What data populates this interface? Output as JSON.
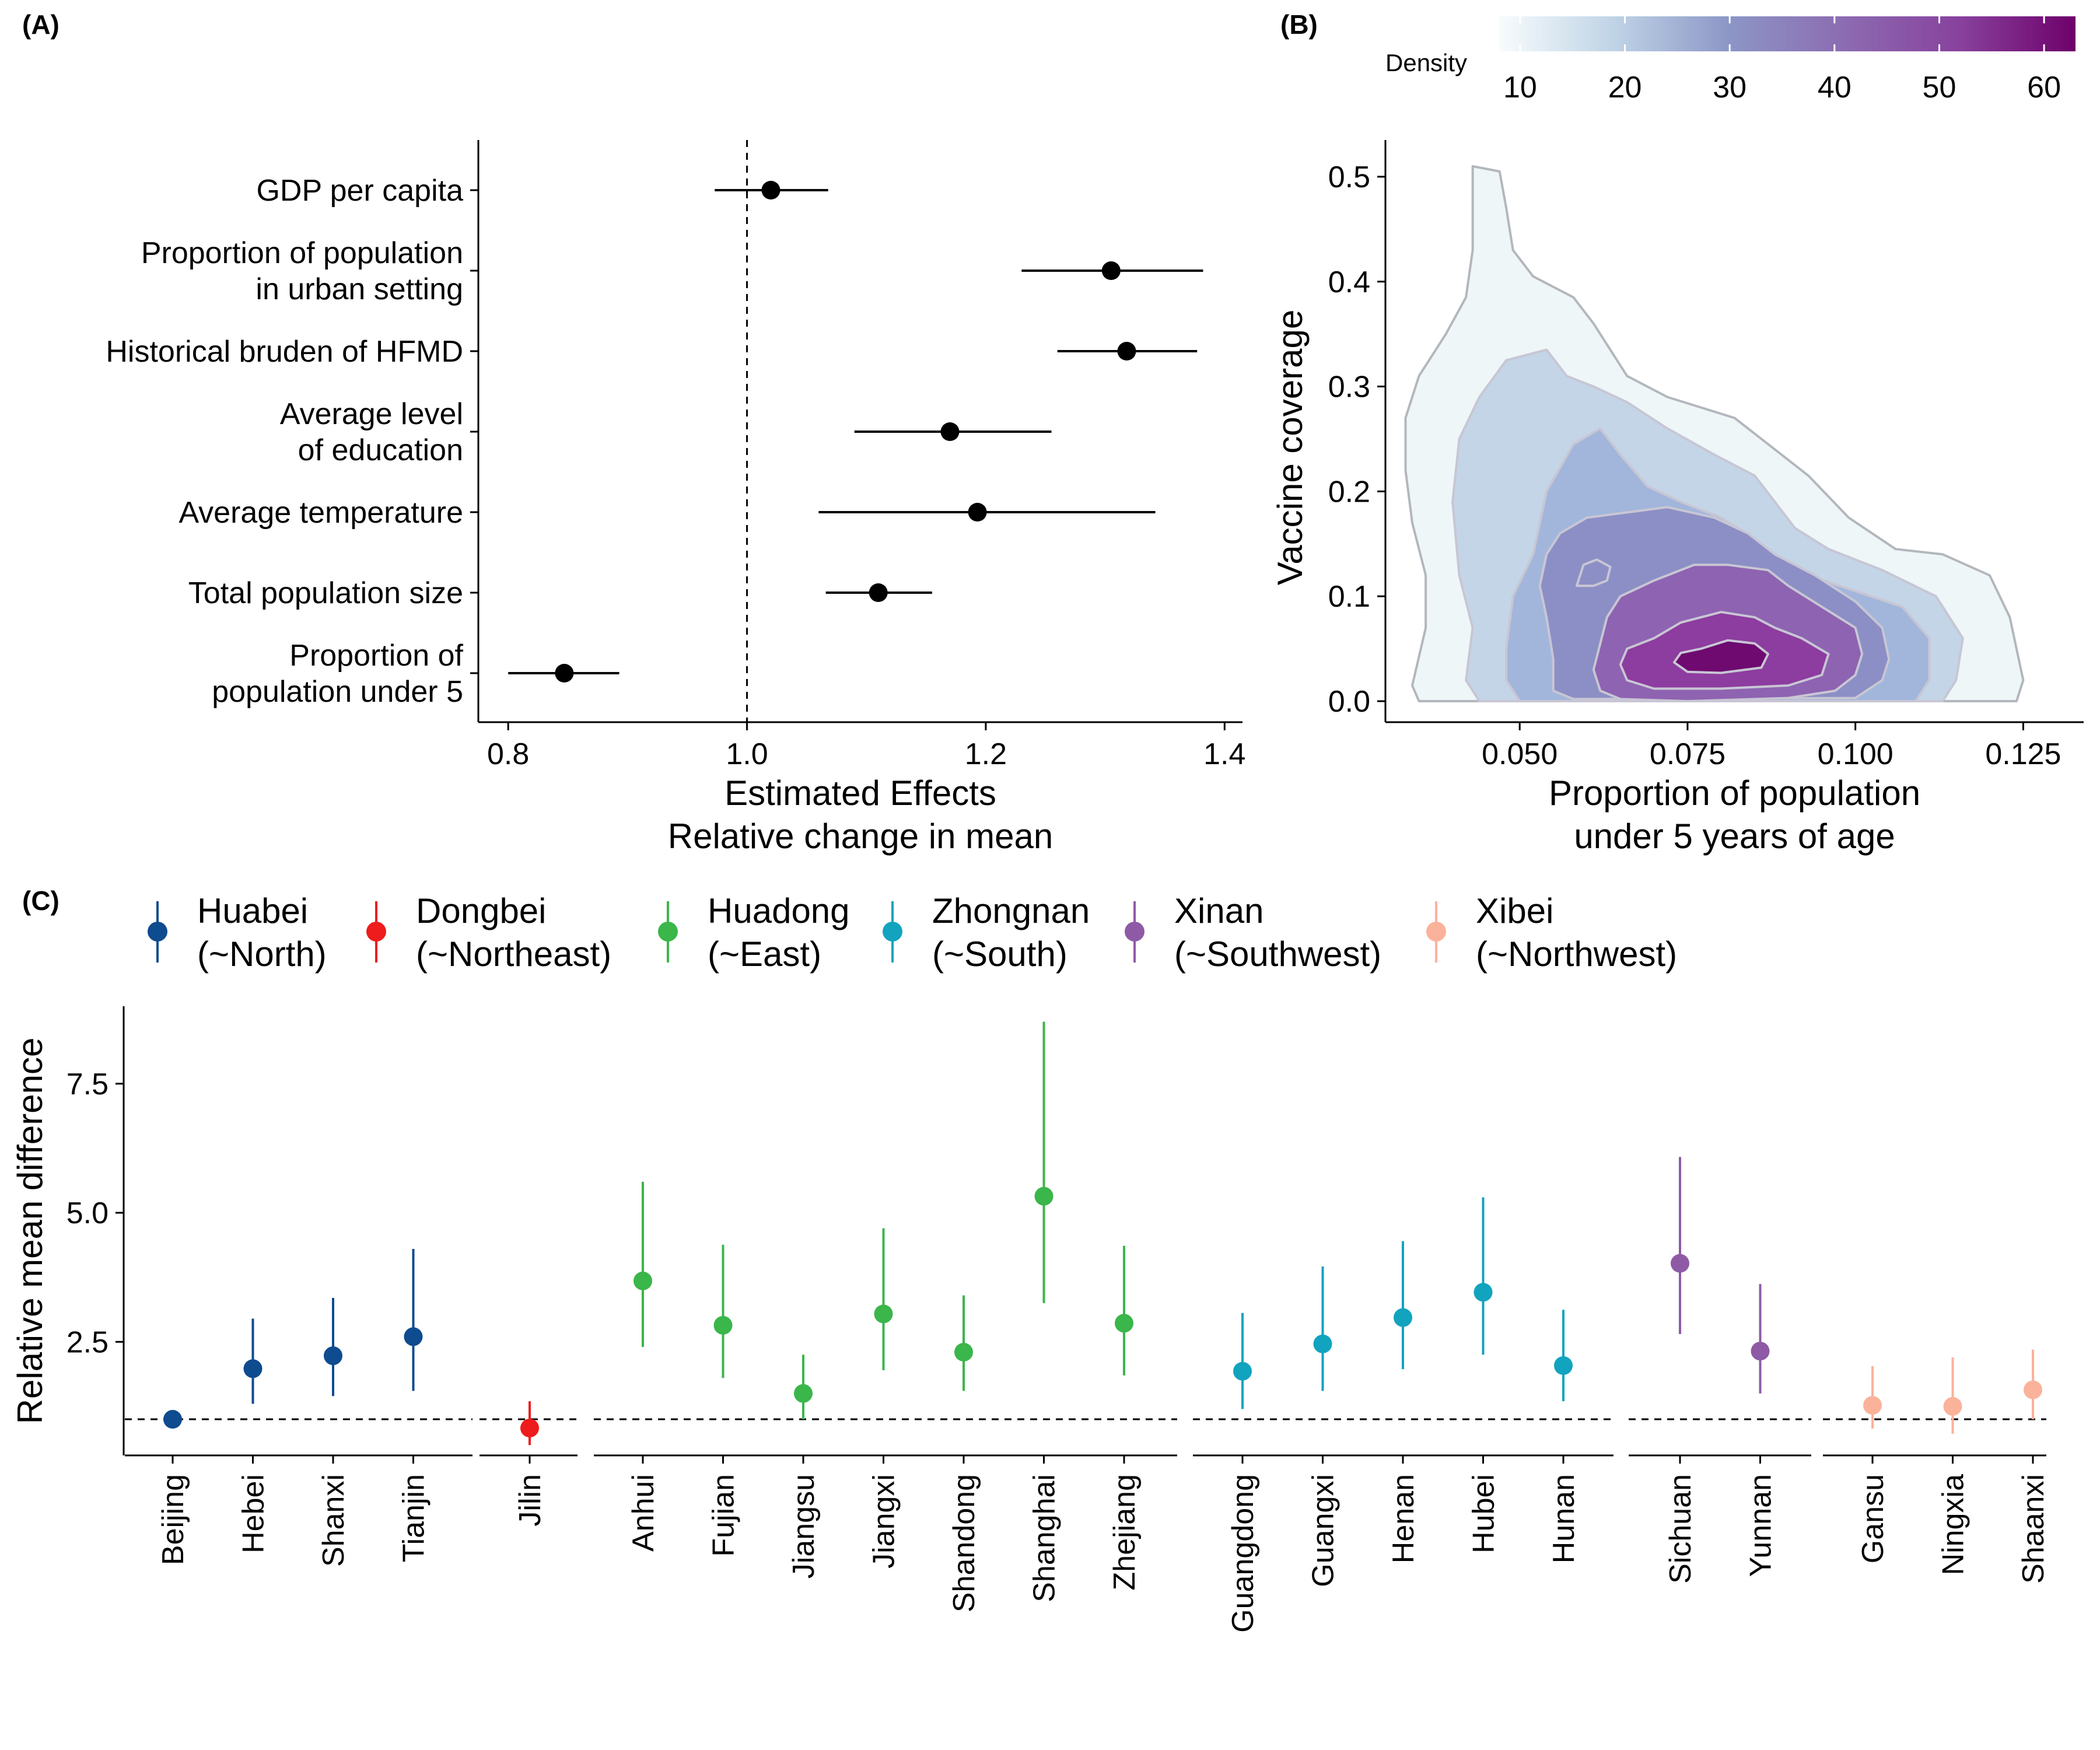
{
  "panels": {
    "a": "(A)",
    "b": "(B)",
    "c": "(C)"
  },
  "chart_data": [
    {
      "type": "scatter",
      "panel": "(A)",
      "xlabel_lines": [
        "Estimated Effects",
        "Relative change in mean"
      ],
      "ylabel": "",
      "xlim": [
        0.775,
        1.415
      ],
      "xticks": [
        0.8,
        1.0,
        1.2,
        1.4
      ],
      "reference_line_x": 1.0,
      "items": [
        {
          "label_lines": [
            "GDP per capita"
          ],
          "value": 1.02,
          "lo": 0.973,
          "hi": 1.068
        },
        {
          "label_lines": [
            "Proportion of population",
            "in urban setting"
          ],
          "value": 1.305,
          "lo": 1.23,
          "hi": 1.382
        },
        {
          "label_lines": [
            "Historical bruden of HFMD"
          ],
          "value": 1.318,
          "lo": 1.26,
          "hi": 1.377
        },
        {
          "label_lines": [
            "Average level",
            "of education"
          ],
          "value": 1.17,
          "lo": 1.09,
          "hi": 1.255
        },
        {
          "label_lines": [
            "Average temperature"
          ],
          "value": 1.193,
          "lo": 1.06,
          "hi": 1.342
        },
        {
          "label_lines": [
            "Total population size"
          ],
          "value": 1.11,
          "lo": 1.066,
          "hi": 1.155
        },
        {
          "label_lines": [
            "Proportion of",
            "population under 5"
          ],
          "value": 0.847,
          "lo": 0.8,
          "hi": 0.893
        }
      ]
    },
    {
      "type": "heatmap",
      "subtype": "density-contour",
      "panel": "(B)",
      "xlabel_lines": [
        "Proportion of population",
        "under 5 years of age"
      ],
      "ylabel": "Vaccine coverage",
      "xlim": [
        0.03,
        0.134
      ],
      "ylim": [
        -0.02,
        0.535
      ],
      "xticks": [
        "0.050",
        "0.075",
        "0.100",
        "0.125"
      ],
      "yticks": [
        "0.0",
        "0.1",
        "0.2",
        "0.3",
        "0.4",
        "0.5"
      ],
      "legend_title": "Density",
      "legend_ticks": [
        10,
        20,
        30,
        40,
        50,
        60
      ],
      "legend_range": [
        8,
        63
      ],
      "colorscale": [
        "#f7fcfd",
        "#bfd3e6",
        "#8c96c6",
        "#8c6bb1",
        "#88419d",
        "#6e016b"
      ],
      "levels": [
        {
          "density": 3,
          "color": "#eef6f8"
        },
        {
          "density": 10,
          "color": "#c3d5e7"
        },
        {
          "density": 20,
          "color": "#a2b6db"
        },
        {
          "density": 30,
          "color": "#8c8fc5"
        },
        {
          "density": 40,
          "color": "#8e63b1"
        },
        {
          "density": 50,
          "color": "#8d3c9f"
        },
        {
          "density": 60,
          "color": "#6e0a70"
        }
      ],
      "contours": [
        [
          [
            0.043,
            0.51
          ],
          [
            0.047,
            0.505
          ],
          [
            0.048,
            0.47
          ],
          [
            0.049,
            0.43
          ],
          [
            0.052,
            0.405
          ],
          [
            0.058,
            0.385
          ],
          [
            0.061,
            0.36
          ],
          [
            0.066,
            0.31
          ],
          [
            0.072,
            0.29
          ],
          [
            0.082,
            0.27
          ],
          [
            0.088,
            0.24
          ],
          [
            0.093,
            0.215
          ],
          [
            0.099,
            0.175
          ],
          [
            0.106,
            0.145
          ],
          [
            0.113,
            0.14
          ],
          [
            0.12,
            0.12
          ],
          [
            0.123,
            0.08
          ],
          [
            0.125,
            0.02
          ],
          [
            0.124,
            0.0
          ],
          [
            0.035,
            0.0
          ],
          [
            0.034,
            0.015
          ],
          [
            0.036,
            0.07
          ],
          [
            0.036,
            0.12
          ],
          [
            0.034,
            0.17
          ],
          [
            0.033,
            0.22
          ],
          [
            0.033,
            0.27
          ],
          [
            0.035,
            0.31
          ],
          [
            0.039,
            0.35
          ],
          [
            0.042,
            0.385
          ],
          [
            0.043,
            0.43
          ]
        ],
        [
          [
            0.048,
            0.325
          ],
          [
            0.054,
            0.335
          ],
          [
            0.057,
            0.31
          ],
          [
            0.061,
            0.3
          ],
          [
            0.066,
            0.285
          ],
          [
            0.072,
            0.26
          ],
          [
            0.079,
            0.235
          ],
          [
            0.085,
            0.215
          ],
          [
            0.088,
            0.19
          ],
          [
            0.091,
            0.165
          ],
          [
            0.096,
            0.145
          ],
          [
            0.104,
            0.125
          ],
          [
            0.112,
            0.1
          ],
          [
            0.116,
            0.06
          ],
          [
            0.115,
            0.02
          ],
          [
            0.113,
            0.0
          ],
          [
            0.044,
            0.0
          ],
          [
            0.042,
            0.02
          ],
          [
            0.043,
            0.07
          ],
          [
            0.041,
            0.12
          ],
          [
            0.04,
            0.19
          ],
          [
            0.041,
            0.25
          ],
          [
            0.044,
            0.29
          ]
        ],
        [
          [
            0.058,
            0.245
          ],
          [
            0.062,
            0.26
          ],
          [
            0.065,
            0.235
          ],
          [
            0.069,
            0.205
          ],
          [
            0.074,
            0.19
          ],
          [
            0.08,
            0.175
          ],
          [
            0.085,
            0.155
          ],
          [
            0.089,
            0.135
          ],
          [
            0.093,
            0.12
          ],
          [
            0.1,
            0.105
          ],
          [
            0.107,
            0.09
          ],
          [
            0.111,
            0.06
          ],
          [
            0.111,
            0.02
          ],
          [
            0.109,
            0.0
          ],
          [
            0.05,
            0.0
          ],
          [
            0.048,
            0.02
          ],
          [
            0.048,
            0.05
          ],
          [
            0.049,
            0.1
          ],
          [
            0.052,
            0.14
          ],
          [
            0.054,
            0.2
          ]
        ],
        [
          [
            0.054,
            0.14
          ],
          [
            0.056,
            0.16
          ],
          [
            0.06,
            0.175
          ],
          [
            0.066,
            0.18
          ],
          [
            0.072,
            0.185
          ],
          [
            0.079,
            0.175
          ],
          [
            0.084,
            0.16
          ],
          [
            0.088,
            0.14
          ],
          [
            0.094,
            0.12
          ],
          [
            0.1,
            0.095
          ],
          [
            0.104,
            0.07
          ],
          [
            0.105,
            0.04
          ],
          [
            0.104,
            0.02
          ],
          [
            0.1,
            0.003
          ],
          [
            0.058,
            0.002
          ],
          [
            0.055,
            0.01
          ],
          [
            0.055,
            0.04
          ],
          [
            0.054,
            0.08
          ],
          [
            0.053,
            0.11
          ]
        ],
        [
          [
            0.065,
            0.1
          ],
          [
            0.07,
            0.115
          ],
          [
            0.076,
            0.13
          ],
          [
            0.081,
            0.13
          ],
          [
            0.087,
            0.125
          ],
          [
            0.09,
            0.11
          ],
          [
            0.095,
            0.09
          ],
          [
            0.1,
            0.07
          ],
          [
            0.101,
            0.045
          ],
          [
            0.1,
            0.025
          ],
          [
            0.097,
            0.01
          ],
          [
            0.09,
            0.003
          ],
          [
            0.075,
            0.0
          ],
          [
            0.065,
            0.002
          ],
          [
            0.062,
            0.01
          ],
          [
            0.061,
            0.03
          ],
          [
            0.062,
            0.055
          ],
          [
            0.063,
            0.08
          ]
        ],
        [
          [
            0.07,
            0.06
          ],
          [
            0.074,
            0.075
          ],
          [
            0.08,
            0.085
          ],
          [
            0.085,
            0.08
          ],
          [
            0.088,
            0.07
          ],
          [
            0.092,
            0.06
          ],
          [
            0.096,
            0.045
          ],
          [
            0.095,
            0.025
          ],
          [
            0.09,
            0.015
          ],
          [
            0.08,
            0.012
          ],
          [
            0.07,
            0.012
          ],
          [
            0.066,
            0.02
          ],
          [
            0.065,
            0.035
          ],
          [
            0.066,
            0.05
          ]
        ],
        [
          [
            0.077,
            0.05
          ],
          [
            0.081,
            0.058
          ],
          [
            0.085,
            0.055
          ],
          [
            0.087,
            0.045
          ],
          [
            0.086,
            0.032
          ],
          [
            0.08,
            0.027
          ],
          [
            0.075,
            0.028
          ],
          [
            0.073,
            0.037
          ],
          [
            0.074,
            0.046
          ]
        ],
        [
          [
            0.0585,
            0.11
          ],
          [
            0.0595,
            0.13
          ],
          [
            0.0615,
            0.135
          ],
          [
            0.0635,
            0.128
          ],
          [
            0.063,
            0.115
          ],
          [
            0.061,
            0.11
          ]
        ]
      ],
      "contour_level_index": [
        0,
        1,
        2,
        3,
        4,
        5,
        6,
        3
      ]
    },
    {
      "type": "scatter",
      "panel": "(C)",
      "ylabel": "Relative mean difference",
      "ylim": [
        0.3,
        9.0
      ],
      "yticks": [
        "2.5",
        "5.0",
        "7.5"
      ],
      "reference_line_y": 1.0,
      "legend_position": "top",
      "groups": [
        {
          "name_lines": [
            "Huabei",
            "(~North)"
          ],
          "color": "#0f4b8f",
          "provinces": [
            {
              "name": "Beijing",
              "value": 1.0,
              "lo": 1.0,
              "hi": 1.0
            },
            {
              "name": "Hebei",
              "value": 1.98,
              "lo": 1.3,
              "hi": 2.95
            },
            {
              "name": "Shanxi",
              "value": 2.23,
              "lo": 1.45,
              "hi": 3.35
            },
            {
              "name": "Tianjin",
              "value": 2.6,
              "lo": 1.55,
              "hi": 4.3
            }
          ]
        },
        {
          "name_lines": [
            "Dongbei",
            "(~Northeast)"
          ],
          "color": "#ee1c1c",
          "provinces": [
            {
              "name": "Jilin",
              "value": 0.83,
              "lo": 0.5,
              "hi": 1.35
            }
          ]
        },
        {
          "name_lines": [
            "Huadong",
            "(~East)"
          ],
          "color": "#3ab64a",
          "provinces": [
            {
              "name": "Anhui",
              "value": 3.68,
              "lo": 2.4,
              "hi": 5.6
            },
            {
              "name": "Fujian",
              "value": 2.82,
              "lo": 1.8,
              "hi": 4.38
            },
            {
              "name": "Jiangsu",
              "value": 1.5,
              "lo": 1.0,
              "hi": 2.25
            },
            {
              "name": "Jiangxi",
              "value": 3.04,
              "lo": 1.95,
              "hi": 4.7
            },
            {
              "name": "Shandong",
              "value": 2.3,
              "lo": 1.55,
              "hi": 3.4
            },
            {
              "name": "Shanghai",
              "value": 5.32,
              "lo": 3.25,
              "hi": 8.7
            },
            {
              "name": "Zhejiang",
              "value": 2.86,
              "lo": 1.85,
              "hi": 4.36
            }
          ]
        },
        {
          "name_lines": [
            "Zhongnan",
            "(~South)"
          ],
          "color": "#12a3bf",
          "provinces": [
            {
              "name": "Guangdong",
              "value": 1.93,
              "lo": 1.2,
              "hi": 3.06
            },
            {
              "name": "Guangxi",
              "value": 2.46,
              "lo": 1.55,
              "hi": 3.96
            },
            {
              "name": "Henan",
              "value": 2.97,
              "lo": 1.97,
              "hi": 4.45
            },
            {
              "name": "Hubei",
              "value": 3.46,
              "lo": 2.25,
              "hi": 5.3
            },
            {
              "name": "Hunan",
              "value": 2.04,
              "lo": 1.35,
              "hi": 3.12
            }
          ]
        },
        {
          "name_lines": [
            "Xinan",
            "(~Southwest)"
          ],
          "color": "#8e5aa6",
          "provinces": [
            {
              "name": "Sichuan",
              "value": 4.02,
              "lo": 2.65,
              "hi": 6.08
            },
            {
              "name": "Yunnan",
              "value": 2.32,
              "lo": 1.5,
              "hi": 3.62
            }
          ]
        },
        {
          "name_lines": [
            "Xibei",
            "(~Northwest)"
          ],
          "color": "#fbb29a",
          "provinces": [
            {
              "name": "Gansu",
              "value": 1.27,
              "lo": 0.82,
              "hi": 2.03
            },
            {
              "name": "Ningxia",
              "value": 1.25,
              "lo": 0.72,
              "hi": 2.2
            },
            {
              "name": "Shaanxi",
              "value": 1.57,
              "lo": 1.0,
              "hi": 2.35
            }
          ]
        }
      ]
    }
  ]
}
